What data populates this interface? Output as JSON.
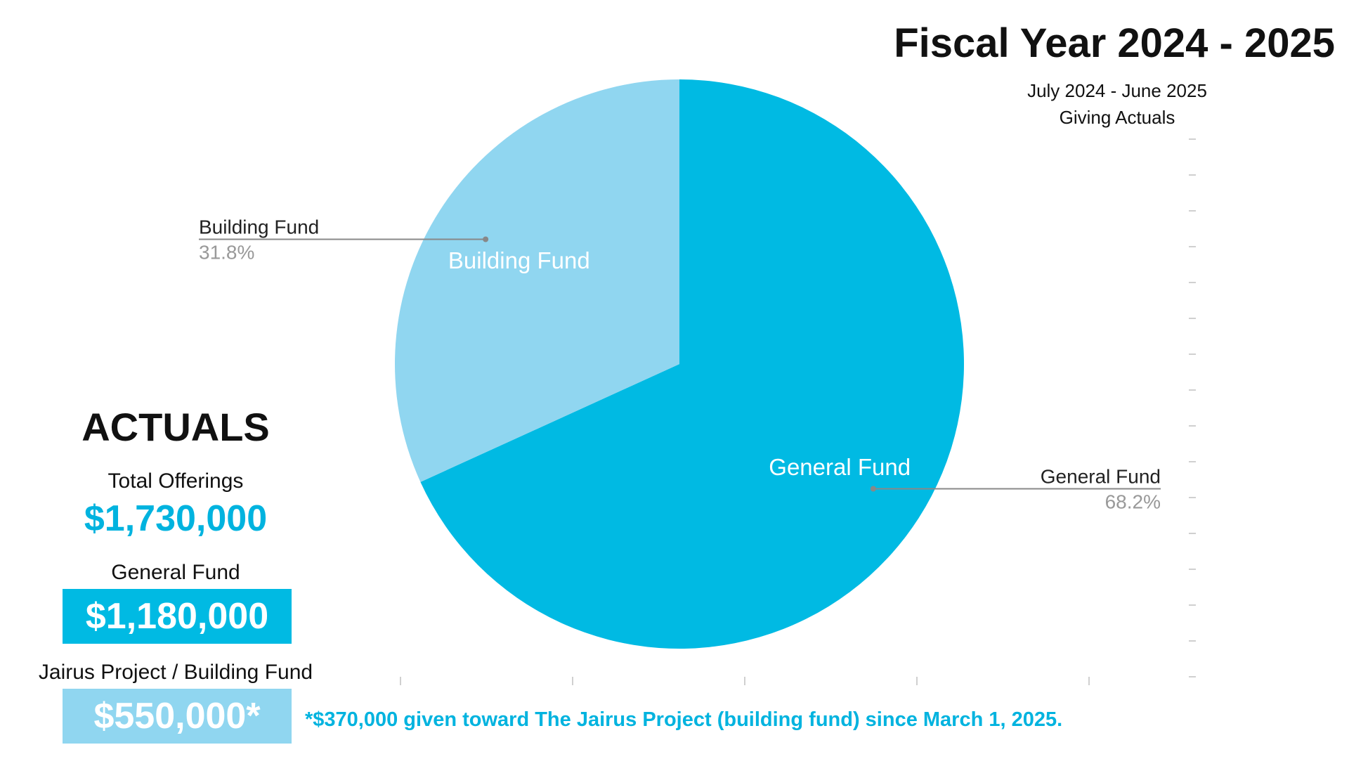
{
  "header": {
    "title": "Fiscal Year 2024 - 2025",
    "period": "July 2024 - June 2025",
    "subtitle": "Giving Actuals"
  },
  "colors": {
    "general": "#00BAE3",
    "building": "#90D6F0",
    "accent": "#00B3DF",
    "leader": "#888888",
    "percent": "#999999",
    "grid": "#d0d0d0"
  },
  "chart_data": {
    "type": "pie",
    "slices": [
      {
        "label": "General Fund",
        "percent_label": "68.2%",
        "value": 68.2
      },
      {
        "label": "Building Fund",
        "percent_label": "31.8%",
        "value": 31.8
      }
    ],
    "start_angle_deg": 0,
    "direction": "clockwise"
  },
  "actuals": {
    "heading": "ACTUALS",
    "total_label": "Total Offerings",
    "total_value": "$1,730,000",
    "general_label": "General Fund",
    "general_value": "$1,180,000",
    "building_label": "Jairus Project / Building Fund",
    "building_value": "$550,000*"
  },
  "footnote": "*$370,000 given toward The Jairus Project (building fund) since March 1, 2025."
}
